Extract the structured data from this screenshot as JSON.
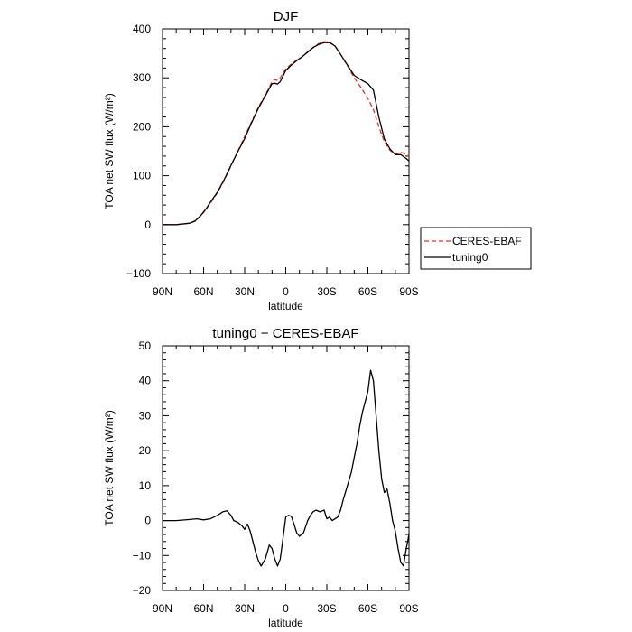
{
  "chart_data": [
    {
      "type": "line",
      "title": "DJF",
      "xlabel": "latitude",
      "ylabel": "TOA net SW flux (W/m²)",
      "xlim": [
        90,
        -90
      ],
      "ylim": [
        -100,
        400
      ],
      "xtick_values": [
        90,
        60,
        30,
        0,
        -30,
        -60,
        -90
      ],
      "xtick_labels": [
        "90N",
        "60N",
        "30N",
        "0",
        "30S",
        "60S",
        "90S"
      ],
      "ytick_values": [
        -100,
        0,
        100,
        200,
        300,
        400
      ],
      "ytick_labels": [
        "−100",
        "0",
        "100",
        "200",
        "300",
        "400"
      ],
      "legend": [
        "CERES-EBAF",
        "tuning0"
      ],
      "series": [
        {
          "name": "CERES-EBAF",
          "color": "#e8302a",
          "dash": true,
          "x": [
            90,
            80,
            70,
            66,
            62,
            58,
            54,
            50,
            45,
            40,
            35,
            30,
            25,
            20,
            15,
            12,
            10,
            8,
            6,
            4,
            0,
            -4,
            -8,
            -12,
            -16,
            -20,
            -24,
            -28,
            -32,
            -36,
            -40,
            -45,
            -50,
            -55,
            -60,
            -64,
            -68,
            -72,
            -76,
            -80,
            -84,
            -88,
            -90
          ],
          "y": [
            0,
            0,
            3,
            7,
            18,
            32,
            48,
            65,
            90,
            120,
            150,
            180,
            210,
            240,
            265,
            280,
            293,
            296,
            295,
            300,
            318,
            328,
            336,
            343,
            352,
            362,
            370,
            374,
            373,
            365,
            348,
            325,
            300,
            280,
            258,
            235,
            200,
            170,
            152,
            144,
            148,
            144,
            138
          ]
        },
        {
          "name": "tuning0",
          "color": "#000000",
          "dash": false,
          "x": [
            90,
            80,
            70,
            66,
            62,
            58,
            54,
            50,
            45,
            40,
            35,
            30,
            25,
            20,
            15,
            12,
            10,
            8,
            6,
            4,
            0,
            -4,
            -8,
            -12,
            -16,
            -20,
            -24,
            -28,
            -32,
            -36,
            -40,
            -45,
            -50,
            -55,
            -60,
            -64,
            -68,
            -72,
            -76,
            -80,
            -84,
            -88,
            -90
          ],
          "y": [
            0,
            0,
            3,
            8,
            19,
            33,
            50,
            66,
            92,
            121,
            149,
            176,
            208,
            238,
            263,
            278,
            288,
            289,
            287,
            292,
            315,
            326,
            335,
            343,
            353,
            362,
            368,
            372,
            372,
            365,
            348,
            326,
            305,
            296,
            288,
            275,
            220,
            175,
            155,
            143,
            143,
            135,
            130
          ]
        }
      ]
    },
    {
      "type": "line",
      "title": "tuning0 − CERES-EBAF",
      "xlabel": "latitude",
      "ylabel": "TOA net SW flux (W/m²)",
      "xlim": [
        90,
        -90
      ],
      "ylim": [
        -20,
        50
      ],
      "xtick_values": [
        90,
        60,
        30,
        0,
        -30,
        -60,
        -90
      ],
      "xtick_labels": [
        "90N",
        "60N",
        "30N",
        "0",
        "30S",
        "60S",
        "90S"
      ],
      "ytick_values": [
        -20,
        -10,
        0,
        10,
        20,
        30,
        40,
        50
      ],
      "ytick_labels": [
        "−20",
        "−10",
        "0",
        "10",
        "20",
        "30",
        "40",
        "50"
      ],
      "series": [
        {
          "color": "#000000",
          "dash": false,
          "x": [
            90,
            80,
            70,
            65,
            60,
            55,
            50,
            46,
            43,
            40,
            38,
            35,
            32,
            30,
            28,
            26,
            24,
            22,
            20,
            18,
            15,
            12,
            10,
            8,
            6,
            4,
            2,
            0,
            -2,
            -4,
            -6,
            -8,
            -10,
            -13,
            -16,
            -18,
            -20,
            -22,
            -25,
            -28,
            -30,
            -32,
            -34,
            -36,
            -38,
            -40,
            -42,
            -45,
            -48,
            -50,
            -52,
            -54,
            -56,
            -58,
            -60,
            -62,
            -64,
            -66,
            -68,
            -70,
            -72,
            -74,
            -76,
            -78,
            -80,
            -82,
            -84,
            -86,
            -88,
            -90
          ],
          "y": [
            0,
            0,
            0.3,
            0.5,
            0.2,
            0.5,
            1.5,
            2.5,
            2.8,
            1.5,
            0,
            -0.5,
            -1.5,
            -2.5,
            -1,
            -3,
            -6,
            -9,
            -11.5,
            -13,
            -11,
            -7,
            -8,
            -11,
            -13,
            -11,
            -5,
            1,
            1.5,
            1.2,
            -1,
            -3.5,
            -4.5,
            -3.5,
            0,
            1.5,
            2.5,
            3,
            2.5,
            3,
            0.5,
            1,
            0,
            0.5,
            1,
            3,
            6,
            10,
            14,
            18,
            22,
            27,
            31,
            34,
            37,
            43,
            40,
            30,
            20,
            12,
            8,
            9,
            5,
            0,
            -3,
            -8,
            -12,
            -13,
            -8,
            -4
          ]
        }
      ]
    }
  ]
}
